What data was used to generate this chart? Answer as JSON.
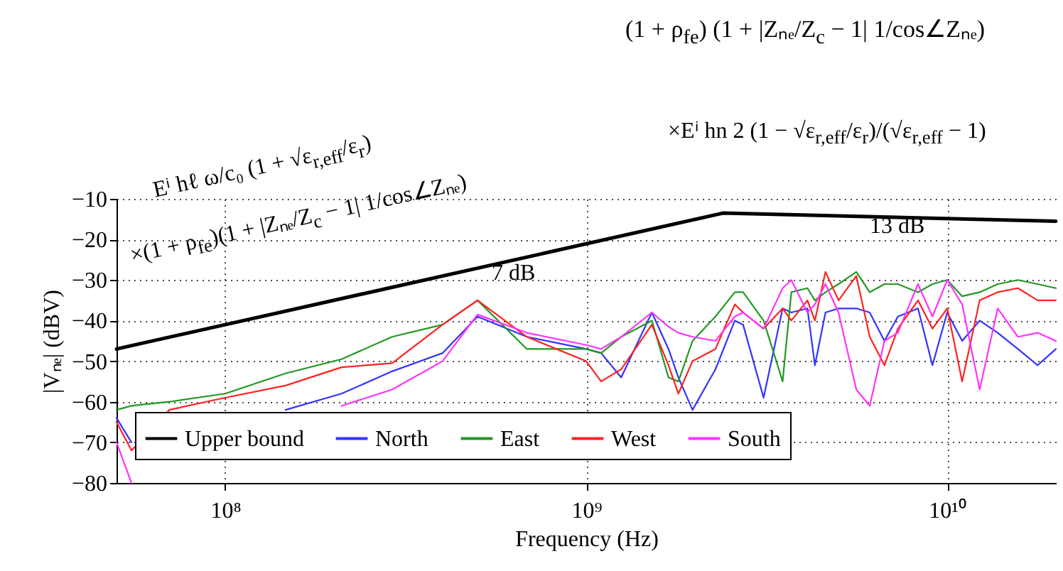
{
  "chart_data": {
    "type": "line",
    "xlabel": "Frequency (Hz)",
    "ylabel": "|Vₙₑ| (dBV)",
    "x": [
      50000000.0,
      55000000.0,
      70000000.0,
      100000000.0,
      147000000.0,
      210000000.0,
      290000000.0,
      400000000.0,
      500000000.0,
      685000000.0,
      1000000000.0,
      1100000000.0,
      1250000000.0,
      1520000000.0,
      1690000000.0,
      1800000000.0,
      1970000000.0,
      2280000000.0,
      2580000000.0,
      2720000000.0,
      3100000000.0,
      3500000000.0,
      3700000000.0,
      4100000000.0,
      4300000000.0,
      4600000000.0,
      5000000000.0,
      5600000000.0,
      6100000000.0,
      6700000000.0,
      7300000000.0,
      8300000000.0,
      9100000000.0,
      10000000000.0,
      11000000000.0,
      12300000000.0,
      13800000000.0,
      15700000000.0,
      17800000000.0,
      20000000000.0
    ],
    "series": [
      {
        "name": "Upper bound",
        "color": "#000000",
        "x": [
          50000000.0,
          2400000000.0,
          20000000000.0
        ],
        "values": [
          -47,
          -13.5,
          -15.5
        ]
      },
      {
        "name": "North",
        "color": "#3333ff",
        "values": [
          -64,
          -70,
          null,
          null,
          -62,
          -58,
          -52.5,
          -48,
          -39,
          -44,
          -47,
          -48,
          -54,
          -38,
          -47,
          -54,
          -62,
          -52,
          -40,
          -41,
          -59,
          -37,
          -38,
          -37,
          -51,
          -38,
          -37,
          -37,
          -38,
          -45,
          -39,
          -37,
          -51,
          -38,
          -45,
          -40,
          -43,
          -47,
          -51,
          -47
        ]
      },
      {
        "name": "East",
        "color": "#229922",
        "values": [
          -62,
          -61,
          -60,
          -58,
          -53,
          -49.5,
          -44,
          -41,
          -35,
          -47,
          -47,
          -48,
          -44,
          -40,
          -54,
          -55,
          -45,
          -39,
          -33,
          -33,
          -40,
          -55,
          -33,
          -32,
          -35,
          -33,
          -31,
          -28,
          -33,
          -31,
          -31,
          -33,
          -31,
          -30,
          -34,
          -33,
          -31,
          -30,
          -31,
          -32
        ]
      },
      {
        "name": "West",
        "color": "#ff2222",
        "values": [
          -65,
          -72,
          -62,
          -59,
          -56,
          -51.5,
          -50.5,
          -41,
          -35,
          -44,
          -50,
          -55,
          -52,
          -41,
          -51,
          -58,
          -50,
          -47,
          -36,
          -38,
          -42,
          -37,
          -40,
          -35,
          -40,
          -28,
          -35,
          -29,
          -44,
          -51,
          -42,
          -35,
          -42,
          -37,
          -55,
          -35,
          -33,
          -32,
          -35,
          -35
        ]
      },
      {
        "name": "South",
        "color": "#ff33ff",
        "values": [
          -70,
          -80,
          null,
          null,
          null,
          -61,
          -57,
          -50,
          -38.5,
          -43,
          -46,
          -47,
          -44,
          -38,
          -41.5,
          -43,
          -44,
          -45,
          -39,
          -38,
          -42,
          -32,
          -30,
          -38,
          -36,
          -31,
          -38,
          -57,
          -61,
          -45,
          -43,
          -31,
          -39,
          -30,
          -36,
          -57,
          -37,
          -44,
          -43,
          -45
        ]
      }
    ],
    "xlim": [
      50000000.0,
      20000000000.0
    ],
    "xticks": [
      {
        "value": 100000000.0,
        "label": "10⁸"
      },
      {
        "value": 1000000000.0,
        "label": "10⁹"
      },
      {
        "value": 10000000000.0,
        "label": "10¹⁰"
      }
    ],
    "ylim": [
      -80,
      -10
    ],
    "yticks": [
      {
        "value": -80,
        "label": "−80"
      },
      {
        "value": -70,
        "label": "−70"
      },
      {
        "value": -60,
        "label": "−60"
      },
      {
        "value": -50,
        "label": "−50"
      },
      {
        "value": -40,
        "label": "−40"
      },
      {
        "value": -30,
        "label": "−30"
      },
      {
        "value": -20,
        "label": "−20"
      },
      {
        "value": -10,
        "label": "−10"
      }
    ],
    "log": "x",
    "grid": true,
    "legend": "bottom",
    "line_style": "solid",
    "marker": "none",
    "annotations": [
      "(1 + ρ$_{fe}$) (1 + |Zₙₑ/Z$_{c}$ − 1| 1/cos∠Zₙₑ)",
      "Eⁱ hℓ ω/c₀ (1 + √ε$_{r,eff}$/ε$_{r}$)",
      "×(1 + ρ$_{fe}$)(1 + |Zₙₑ/Z$_{c}$ − 1| 1/cos∠Zₙₑ)",
      "×Eⁱ hn 2 (1 − √ε$_{r,eff}$/ε$_{r}$)/(√ε$_{r,eff}$ − 1)",
      "7 dB",
      "13 dB"
    ]
  }
}
